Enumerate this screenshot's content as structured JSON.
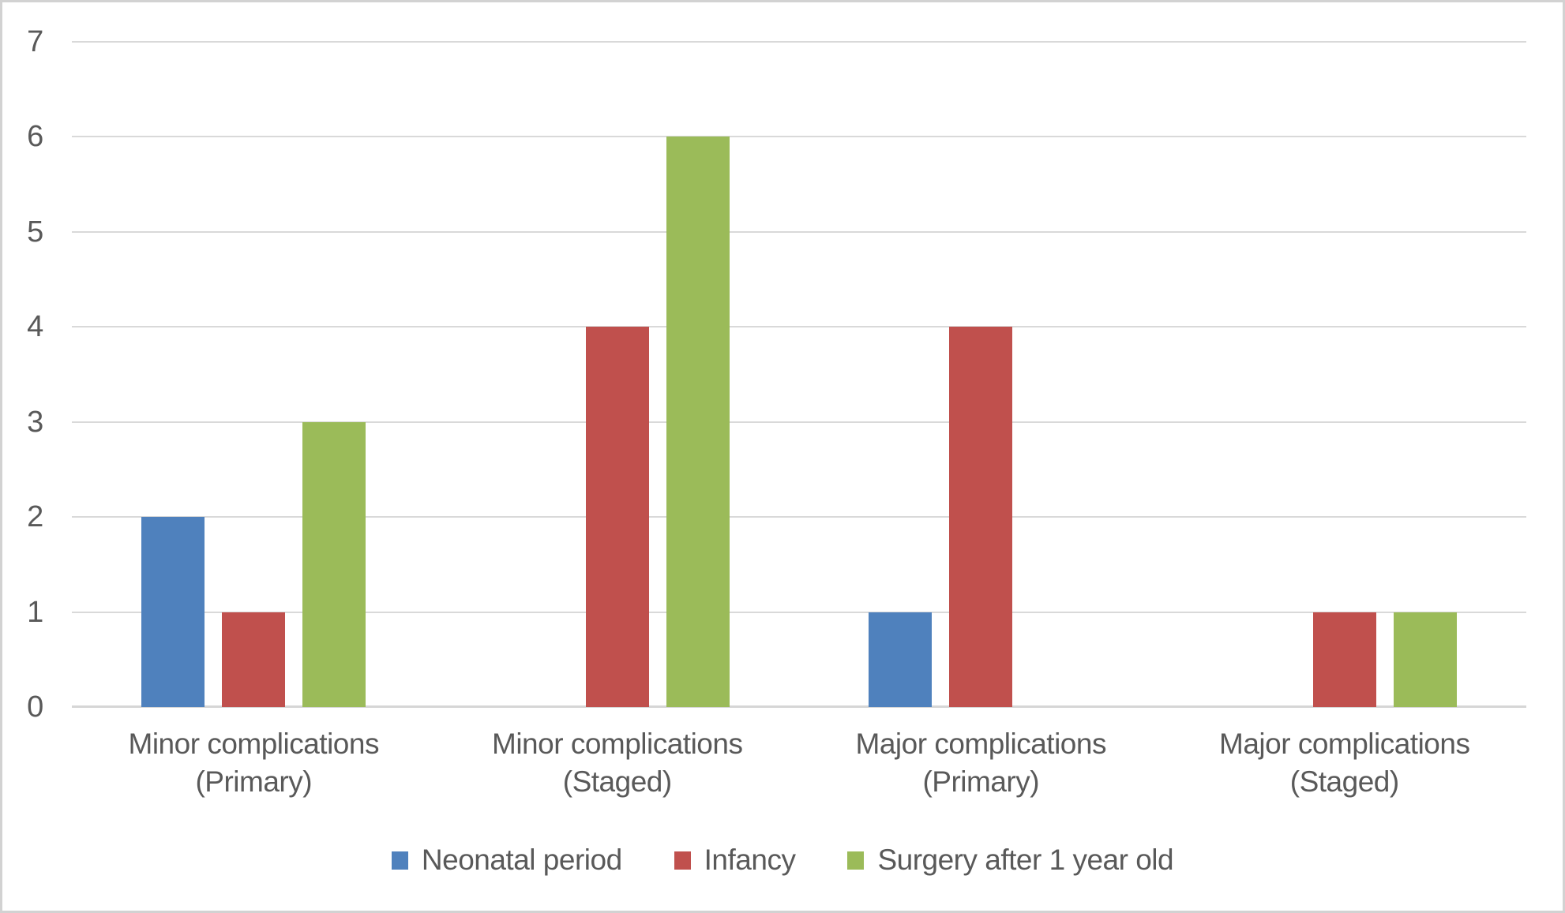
{
  "chart_data": {
    "type": "bar",
    "variant": "clustered-column",
    "title": "",
    "xlabel": "",
    "ylabel": "",
    "categories": [
      "Minor complications (Primary)",
      "Minor complications (Staged)",
      "Major complications (Primary)",
      "Major complications (Staged)"
    ],
    "category_label_lines": [
      [
        "Minor complications",
        "(Primary)"
      ],
      [
        "Minor complications",
        "(Staged)"
      ],
      [
        "Major complications",
        "(Primary)"
      ],
      [
        "Major complications",
        "(Staged)"
      ]
    ],
    "series": [
      {
        "name": "Neonatal period",
        "color": "#4F81BD",
        "values": [
          2,
          0,
          1,
          0
        ]
      },
      {
        "name": "Infancy",
        "color": "#C0504D",
        "values": [
          1,
          4,
          4,
          1
        ]
      },
      {
        "name": "Surgery after 1 year old",
        "color": "#9BBB59",
        "values": [
          3,
          6,
          0,
          1
        ]
      }
    ],
    "ylim": [
      0,
      7
    ],
    "yticks": [
      0,
      1,
      2,
      3,
      4,
      5,
      6,
      7
    ],
    "grid": true,
    "legend_position": "bottom",
    "colors": {
      "text": "#595959",
      "gridline": "#D9D9D9",
      "axis_line": "#D6D6D6",
      "figure_border": "#D2D2D2",
      "background": "#FFFFFF"
    }
  }
}
